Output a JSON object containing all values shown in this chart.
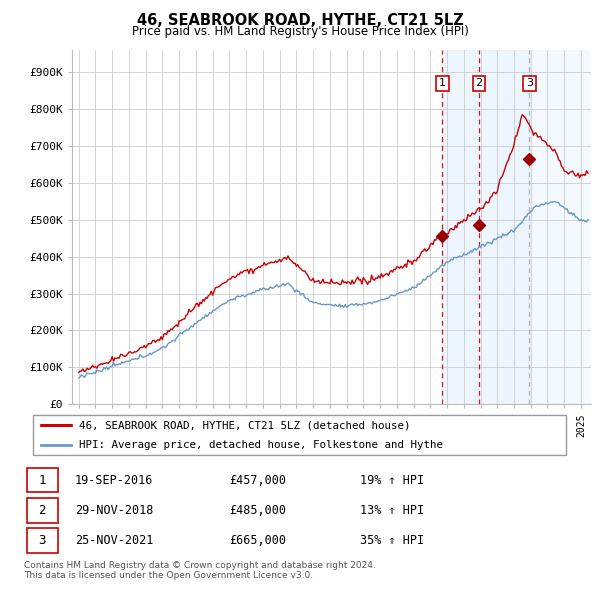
{
  "title": "46, SEABROOK ROAD, HYTHE, CT21 5LZ",
  "subtitle": "Price paid vs. HM Land Registry's House Price Index (HPI)",
  "ylabel_vals": [
    "£0",
    "£100K",
    "£200K",
    "£300K",
    "£400K",
    "£500K",
    "£600K",
    "£700K",
    "£800K",
    "£900K"
  ],
  "yticks": [
    0,
    100000,
    200000,
    300000,
    400000,
    500000,
    600000,
    700000,
    800000,
    900000
  ],
  "ylim": [
    0,
    960000
  ],
  "legend_house": "46, SEABROOK ROAD, HYTHE, CT21 5LZ (detached house)",
  "legend_hpi": "HPI: Average price, detached house, Folkestone and Hythe",
  "transactions": [
    {
      "num": 1,
      "date": "19-SEP-2016",
      "price": "£457,000",
      "change": "19% ↑ HPI",
      "year": 2016.72
    },
    {
      "num": 2,
      "date": "29-NOV-2018",
      "price": "£485,000",
      "change": "13% ↑ HPI",
      "year": 2018.91
    },
    {
      "num": 3,
      "date": "25-NOV-2021",
      "price": "£665,000",
      "change": "35% ↑ HPI",
      "year": 2021.91
    }
  ],
  "transaction_prices": [
    457000,
    485000,
    665000
  ],
  "footnote": "Contains HM Land Registry data © Crown copyright and database right 2024.\nThis data is licensed under the Open Government Licence v3.0.",
  "line_color_house": "#cc0000",
  "line_color_hpi": "#6699cc",
  "vline_color_solid": "#cc0000",
  "vline_color_dashed3": "#aaaaaa",
  "shade_color": "#ddeeff",
  "marker_color_house": "#990000",
  "box_color": "#cc0000",
  "background_color": "#ffffff",
  "grid_color": "#cccccc",
  "legend_border_color": "#999999",
  "xstart": 1995,
  "xend": 2025
}
